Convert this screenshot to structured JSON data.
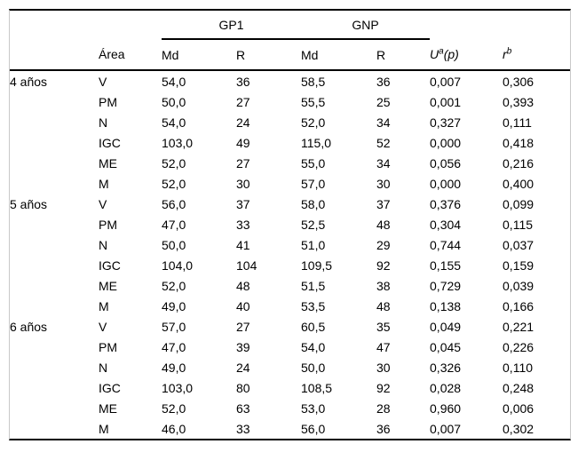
{
  "table": {
    "col_groups": {
      "gp1": "GP1",
      "gnp": "GNP"
    },
    "headers": {
      "area": "Área",
      "md1": "Md",
      "r1": "R",
      "md2": "Md",
      "r2": "R",
      "u_base": "U",
      "u_sup": "a",
      "u_suffix": "(p)",
      "rb_base": "r",
      "rb_sup": "b"
    },
    "rows": [
      {
        "group": "4 años",
        "area": "V",
        "gp1_md": "54,0",
        "gp1_r": "36",
        "gnp_md": "58,5",
        "gnp_r": "36",
        "u": "0,007",
        "u_bold": true,
        "rb": "0,306"
      },
      {
        "group": "",
        "area": "PM",
        "gp1_md": "50,0",
        "gp1_r": "27",
        "gnp_md": "55,5",
        "gnp_r": "25",
        "u": "0,001",
        "u_bold": true,
        "rb": "0,393"
      },
      {
        "group": "",
        "area": "N",
        "gp1_md": "54,0",
        "gp1_r": "24",
        "gnp_md": "52,0",
        "gnp_r": "34",
        "u": "0,327",
        "u_bold": false,
        "rb": "0,111"
      },
      {
        "group": "",
        "area": "IGC",
        "gp1_md": "103,0",
        "gp1_r": "49",
        "gnp_md": "115,0",
        "gnp_r": "52",
        "u": "0,000",
        "u_bold": true,
        "rb": "0,418"
      },
      {
        "group": "",
        "area": "ME",
        "gp1_md": "52,0",
        "gp1_r": "27",
        "gnp_md": "55,0",
        "gnp_r": "34",
        "u": "0,056",
        "u_bold": false,
        "rb": "0,216"
      },
      {
        "group": "",
        "area": "M",
        "gp1_md": "52,0",
        "gp1_r": "30",
        "gnp_md": "57,0",
        "gnp_r": "30",
        "u": "0,000",
        "u_bold": true,
        "rb": "0,400"
      },
      {
        "group": "5 años",
        "area": "V",
        "gp1_md": "56,0",
        "gp1_r": "37",
        "gnp_md": "58,0",
        "gnp_r": "37",
        "u": "0,376",
        "u_bold": false,
        "rb": "0,099"
      },
      {
        "group": "",
        "area": "PM",
        "gp1_md": "47,0",
        "gp1_r": "33",
        "gnp_md": "52,5",
        "gnp_r": "48",
        "u": "0,304",
        "u_bold": false,
        "rb": "0,115"
      },
      {
        "group": "",
        "area": "N",
        "gp1_md": "50,0",
        "gp1_r": "41",
        "gnp_md": "51,0",
        "gnp_r": "29",
        "u": "0,744",
        "u_bold": false,
        "rb": "0,037"
      },
      {
        "group": "",
        "area": "IGC",
        "gp1_md": "104,0",
        "gp1_r": "104",
        "gnp_md": "109,5",
        "gnp_r": "92",
        "u": "0,155",
        "u_bold": false,
        "rb": "0,159"
      },
      {
        "group": "",
        "area": "ME",
        "gp1_md": "52,0",
        "gp1_r": "48",
        "gnp_md": "51,5",
        "gnp_r": "38",
        "u": "0,729",
        "u_bold": false,
        "rb": "0,039"
      },
      {
        "group": "",
        "area": "M",
        "gp1_md": "49,0",
        "gp1_r": "40",
        "gnp_md": "53,5",
        "gnp_r": "48",
        "u": "0,138",
        "u_bold": false,
        "rb": "0,166"
      },
      {
        "group": "6 años",
        "area": "V",
        "gp1_md": "57,0",
        "gp1_r": "27",
        "gnp_md": "60,5",
        "gnp_r": "35",
        "u": "0,049",
        "u_bold": true,
        "rb": "0,221"
      },
      {
        "group": "",
        "area": "PM",
        "gp1_md": "47,0",
        "gp1_r": "39",
        "gnp_md": "54,0",
        "gnp_r": "47",
        "u": "0,045",
        "u_bold": true,
        "rb": "0,226"
      },
      {
        "group": "",
        "area": "N",
        "gp1_md": "49,0",
        "gp1_r": "24",
        "gnp_md": "50,0",
        "gnp_r": "30",
        "u": "0,326",
        "u_bold": false,
        "rb": "0,110"
      },
      {
        "group": "",
        "area": "IGC",
        "gp1_md": "103,0",
        "gp1_r": "80",
        "gnp_md": "108,5",
        "gnp_r": "92",
        "u": "0,028",
        "u_bold": true,
        "rb": "0,248"
      },
      {
        "group": "",
        "area": "ME",
        "gp1_md": "52,0",
        "gp1_r": "63",
        "gnp_md": "53,0",
        "gnp_r": "28",
        "u": "0,960",
        "u_bold": false,
        "rb": "0,006"
      },
      {
        "group": "",
        "area": "M",
        "gp1_md": "46,0",
        "gp1_r": "33",
        "gnp_md": "56,0",
        "gnp_r": "36",
        "u": "0,007",
        "u_bold": true,
        "rb": "0,302"
      }
    ]
  }
}
